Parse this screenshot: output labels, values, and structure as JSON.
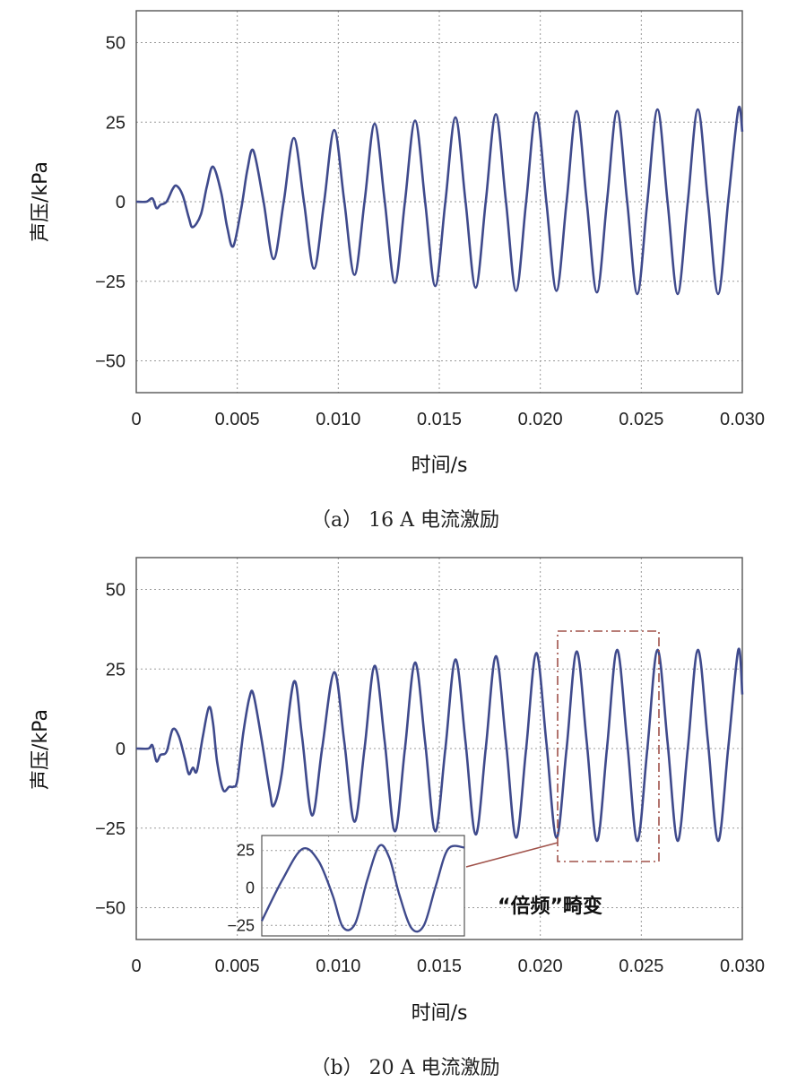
{
  "figure_panels": [
    {
      "caption": "（a） 16 A 电流激励",
      "xlabel": "时间/s",
      "ylabel": "声压/kPa"
    },
    {
      "caption": "（b） 20 A 电流激励",
      "xlabel": "时间/s",
      "ylabel": "声压/kPa",
      "annotation": "“倍频”畸变"
    }
  ],
  "colors": {
    "line": "#3f4a8c",
    "grid": "#9a9a9a",
    "annotation_box": "#a0524a"
  },
  "chart_data": [
    {
      "type": "line",
      "title": "",
      "xlabel": "时间/s",
      "ylabel": "声压/kPa",
      "xlim": [
        0,
        0.03
      ],
      "ylim": [
        -60,
        60
      ],
      "xticks": [
        0,
        0.005,
        0.01,
        0.015,
        0.02,
        0.025,
        0.03
      ],
      "xtick_labels": [
        "0",
        "0.005",
        "0.010",
        "0.015",
        "0.020",
        "0.025",
        "0.030"
      ],
      "yticks": [
        50,
        25,
        0,
        -25,
        -50
      ],
      "ytick_labels": [
        "50",
        "25",
        "0",
        "−25",
        "−50"
      ],
      "grid": true,
      "frequency_hz": 500,
      "series": [
        {
          "x": [
            0,
            0.0005,
            0.0008,
            0.001,
            0.0012,
            0.0015,
            0.0018,
            0.002,
            0.0023,
            0.0026,
            0.0028,
            0.0032,
            0.0035,
            0.0038,
            0.0042,
            0.0045,
            0.0048,
            0.0052,
            0.0055,
            0.0058,
            0.0063,
            0.0068,
            0.0073,
            0.0078,
            0.0083,
            0.0088,
            0.0093,
            0.0098,
            0.0103,
            0.0108,
            0.0113,
            0.0118,
            0.0123,
            0.0128,
            0.0133,
            0.0138,
            0.0143,
            0.0148,
            0.0153,
            0.0158,
            0.0163,
            0.0168,
            0.0173,
            0.0178,
            0.0183,
            0.0188,
            0.0193,
            0.0198,
            0.0203,
            0.0208,
            0.0213,
            0.0218,
            0.0223,
            0.0228,
            0.0233,
            0.0238,
            0.0243,
            0.0248,
            0.0253,
            0.0258,
            0.0263,
            0.0268,
            0.0273,
            0.0278,
            0.0283,
            0.0288,
            0.0293,
            0.0298,
            0.03
          ],
          "y": [
            0,
            0,
            1,
            -2,
            -1,
            0,
            4,
            5,
            2,
            -5,
            -8,
            -4,
            5,
            11,
            3,
            -8,
            -14,
            -2,
            10,
            16,
            0,
            -18,
            0,
            20,
            0,
            -21,
            0,
            22.5,
            0,
            -23,
            0,
            24.5,
            0,
            -25.5,
            0,
            25.5,
            0,
            -26.5,
            0,
            26.5,
            0,
            -27,
            0,
            27.5,
            0,
            -28,
            0,
            28,
            0,
            -28,
            0,
            28.5,
            0,
            -28.5,
            0,
            28.5,
            0,
            -29,
            0,
            29,
            0,
            -29,
            0,
            29,
            0,
            -29,
            0,
            29,
            22
          ]
        }
      ]
    },
    {
      "type": "line",
      "title": "",
      "xlabel": "时间/s",
      "ylabel": "声压/kPa",
      "xlim": [
        0,
        0.03
      ],
      "ylim": [
        -60,
        60
      ],
      "xticks": [
        0,
        0.005,
        0.01,
        0.015,
        0.02,
        0.025,
        0.03
      ],
      "xtick_labels": [
        "0",
        "0.005",
        "0.010",
        "0.015",
        "0.020",
        "0.025",
        "0.030"
      ],
      "yticks": [
        50,
        25,
        0,
        -25,
        -50
      ],
      "ytick_labels": [
        "50",
        "25",
        "0",
        "−25",
        "−50"
      ],
      "grid": true,
      "series": [
        {
          "x": [
            0,
            0.0006,
            0.0008,
            0.001,
            0.0012,
            0.0015,
            0.0018,
            0.0021,
            0.0024,
            0.0026,
            0.0028,
            0.003,
            0.0033,
            0.0036,
            0.0038,
            0.004,
            0.0043,
            0.0046,
            0.0048,
            0.005,
            0.0053,
            0.0056,
            0.0058,
            0.0062,
            0.0066,
            0.0068,
            0.0072,
            0.0078,
            0.0082,
            0.0087,
            0.0092,
            0.0098,
            0.0103,
            0.0108,
            0.0113,
            0.0118,
            0.0123,
            0.0128,
            0.0133,
            0.0138,
            0.0143,
            0.0148,
            0.0153,
            0.0158,
            0.0163,
            0.0168,
            0.0173,
            0.0178,
            0.0183,
            0.0188,
            0.0193,
            0.0198,
            0.0203,
            0.0208,
            0.0213,
            0.0218,
            0.0223,
            0.0228,
            0.0233,
            0.0238,
            0.0243,
            0.0248,
            0.0253,
            0.0258,
            0.0263,
            0.0268,
            0.0273,
            0.0278,
            0.0283,
            0.0288,
            0.0293,
            0.0298,
            0.03
          ],
          "y": [
            0,
            0,
            1,
            -4,
            -2,
            -1,
            6,
            4,
            -3,
            -8,
            -6,
            -7,
            4,
            13,
            8,
            -4,
            -13,
            -12,
            -12,
            -10,
            5,
            16,
            17,
            3,
            -13,
            -18,
            -8,
            21,
            4,
            -21,
            0,
            24,
            2,
            -23,
            0,
            26,
            2,
            -26,
            0,
            27,
            2,
            -26,
            0,
            28,
            2,
            -27,
            0,
            29,
            2,
            -28,
            0,
            30,
            2,
            -28,
            0,
            30.5,
            2,
            -29,
            0,
            31,
            2,
            -29,
            0,
            31,
            2,
            -29,
            0,
            31,
            2,
            -29,
            0,
            31,
            17
          ]
        }
      ],
      "inset": {
        "yticks": [
          25,
          0,
          -25
        ],
        "ytick_labels": [
          "25",
          "0",
          "−25"
        ],
        "ylim": [
          -32,
          35
        ],
        "x": [
          0,
          0.1,
          0.2,
          0.28,
          0.35,
          0.4,
          0.46,
          0.52,
          0.58,
          0.63,
          0.68,
          0.74,
          0.8,
          0.86,
          0.92,
          1.0
        ],
        "y": [
          -22,
          5,
          26,
          18,
          -5,
          -26,
          -24,
          5,
          28,
          20,
          -5,
          -27,
          -25,
          2,
          26,
          27
        ]
      }
    }
  ]
}
